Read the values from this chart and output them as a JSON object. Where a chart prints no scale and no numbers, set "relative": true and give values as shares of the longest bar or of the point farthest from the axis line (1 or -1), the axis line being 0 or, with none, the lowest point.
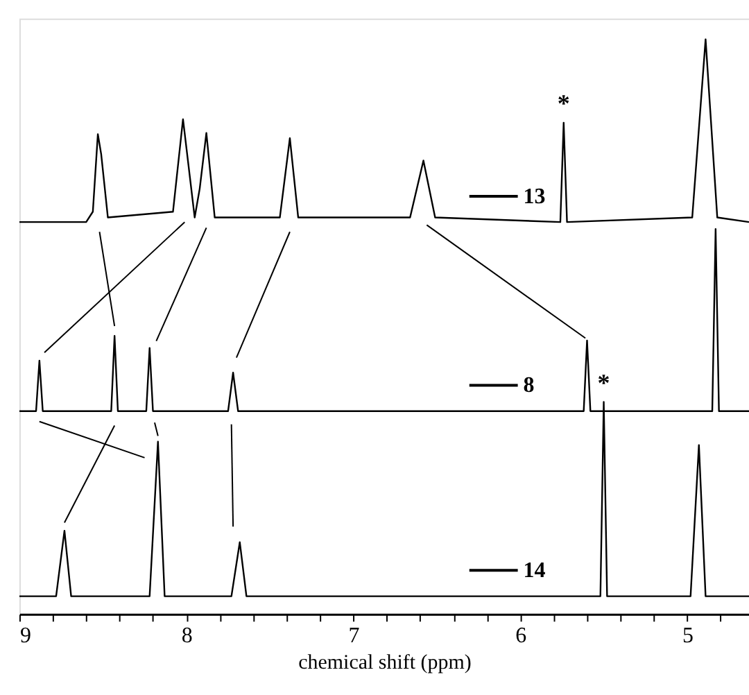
{
  "chart_data": {
    "type": "line",
    "relative": true,
    "xlabel": "chemical shift (ppm)",
    "xlim": [
      9,
      4.63
    ],
    "xticks": [
      9,
      {
        "value": 8.8,
        "label": null
      },
      {
        "value": 8.6,
        "label": null
      },
      {
        "value": 8.4,
        "label": null
      },
      {
        "value": 8.2,
        "label": null
      },
      8,
      {
        "value": 7.8,
        "label": null
      },
      {
        "value": 7.6,
        "label": null
      },
      {
        "value": 7.4,
        "label": null
      },
      {
        "value": 7.2,
        "label": null
      },
      7,
      {
        "value": 6.8,
        "label": null
      },
      {
        "value": 6.6,
        "label": null
      },
      {
        "value": 6.4,
        "label": null
      },
      {
        "value": 6.2,
        "label": null
      },
      6,
      {
        "value": 5.8,
        "label": null
      },
      {
        "value": 5.6,
        "label": null
      },
      {
        "value": 5.4,
        "label": null
      },
      {
        "value": 5.2,
        "label": null
      },
      5,
      {
        "value": 4.8,
        "label": null
      }
    ],
    "tick_labels": "x",
    "grid": false,
    "legend": "right",
    "marker": "none",
    "line_style": "solid",
    "series": [
      {
        "name": "13",
        "color": "#000000",
        "x": [
          9.0,
          8.6,
          8.56,
          8.53,
          8.51,
          8.47,
          8.08,
          8.02,
          7.95,
          7.92,
          7.88,
          7.83,
          7.44,
          7.38,
          7.33,
          6.66,
          6.58,
          6.51,
          5.76,
          5.74,
          5.72,
          4.97,
          4.89,
          4.82,
          4.63
        ],
        "values": [
          0.682,
          0.682,
          0.7,
          0.835,
          0.8,
          0.69,
          0.7,
          0.861,
          0.69,
          0.74,
          0.837,
          0.69,
          0.69,
          0.828,
          0.69,
          0.69,
          0.789,
          0.69,
          0.682,
          0.855,
          0.682,
          0.69,
          1,
          0.69,
          0.682
        ]
      },
      {
        "name": "8",
        "color": "#000000",
        "x": [
          9.0,
          8.9,
          8.88,
          8.86,
          8.45,
          8.43,
          8.41,
          8.24,
          8.22,
          8.2,
          7.75,
          7.72,
          7.69,
          5.62,
          5.6,
          5.58,
          4.85,
          4.83,
          4.81,
          4.63
        ],
        "values": [
          0.353,
          0.353,
          0.441,
          0.353,
          0.353,
          0.484,
          0.353,
          0.353,
          0.463,
          0.353,
          0.353,
          0.42,
          0.353,
          0.353,
          0.476,
          0.353,
          0.353,
          0.67,
          0.353,
          0.353
        ]
      },
      {
        "name": "14",
        "color": "#000000",
        "x": [
          9.0,
          8.78,
          8.73,
          8.69,
          8.22,
          8.17,
          8.13,
          7.73,
          7.68,
          7.64,
          5.52,
          5.5,
          5.48,
          4.98,
          4.93,
          4.89,
          4.63
        ],
        "values": [
          0.031,
          0.031,
          0.145,
          0.031,
          0.031,
          0.3,
          0.031,
          0.031,
          0.125,
          0.031,
          0.031,
          0.369,
          0.031,
          0.031,
          0.294,
          0.031,
          0.031
        ]
      }
    ],
    "annotations": [
      {
        "text": "*",
        "x": 5.74,
        "y": 0.855
      },
      {
        "text": "*",
        "x": 5.5,
        "y": 0.369
      }
    ]
  }
}
